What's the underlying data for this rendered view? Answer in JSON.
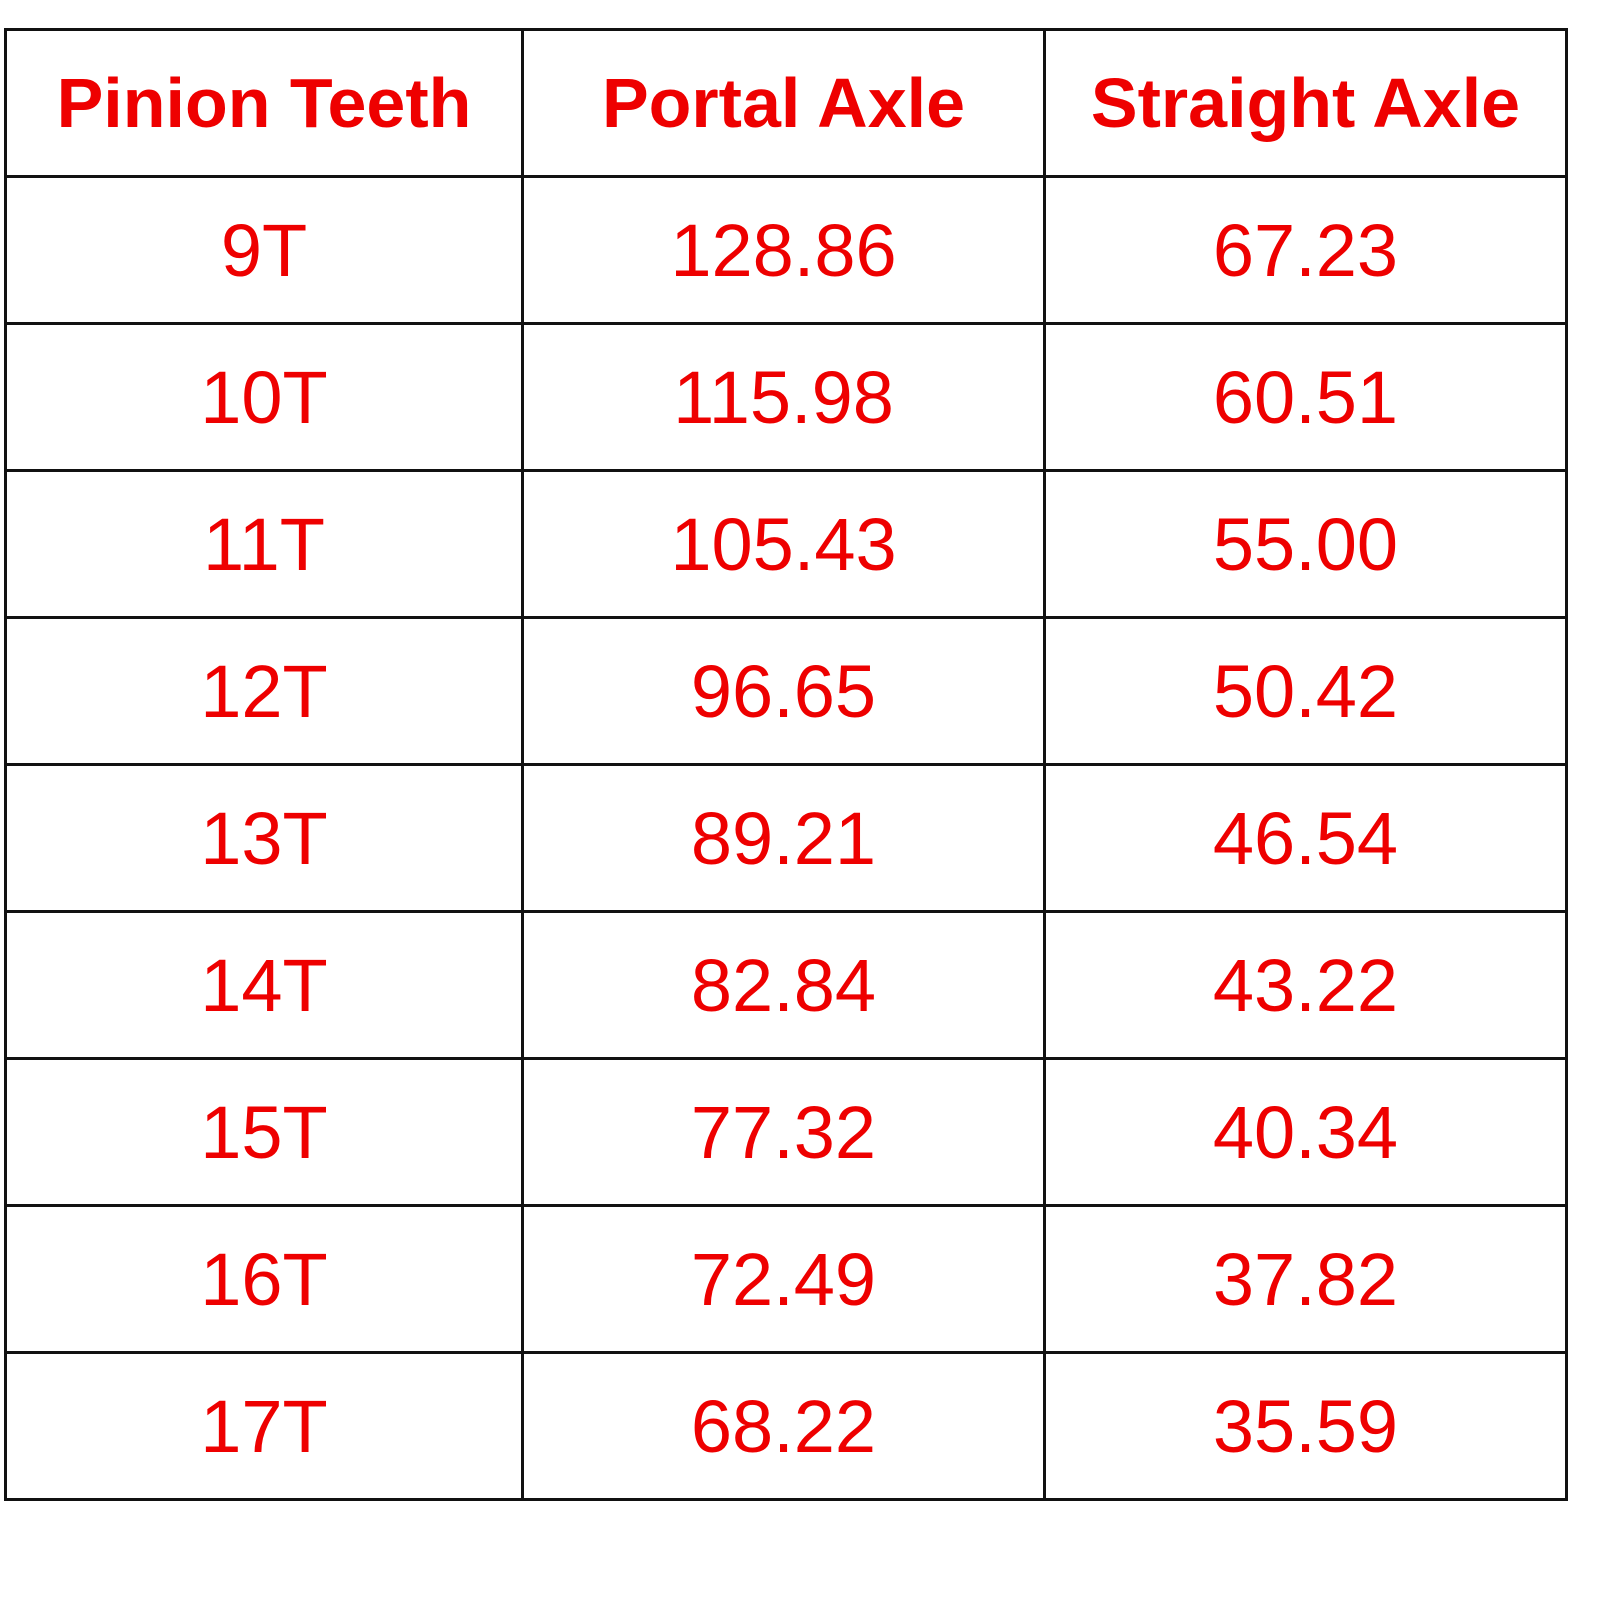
{
  "table": {
    "header": [
      "Pinion Teeth",
      "Portal Axle",
      "Straight Axle"
    ],
    "rows": [
      [
        "9T",
        "128.86",
        "67.23"
      ],
      [
        "10T",
        "115.98",
        "60.51"
      ],
      [
        "11T",
        "105.43",
        "55.00"
      ],
      [
        "12T",
        "96.65",
        "50.42"
      ],
      [
        "13T",
        "89.21",
        "46.54"
      ],
      [
        "14T",
        "82.84",
        "43.22"
      ],
      [
        "15T",
        "77.32",
        "40.34"
      ],
      [
        "16T",
        "72.49",
        "37.82"
      ],
      [
        "17T",
        "68.22",
        "35.59"
      ]
    ]
  }
}
